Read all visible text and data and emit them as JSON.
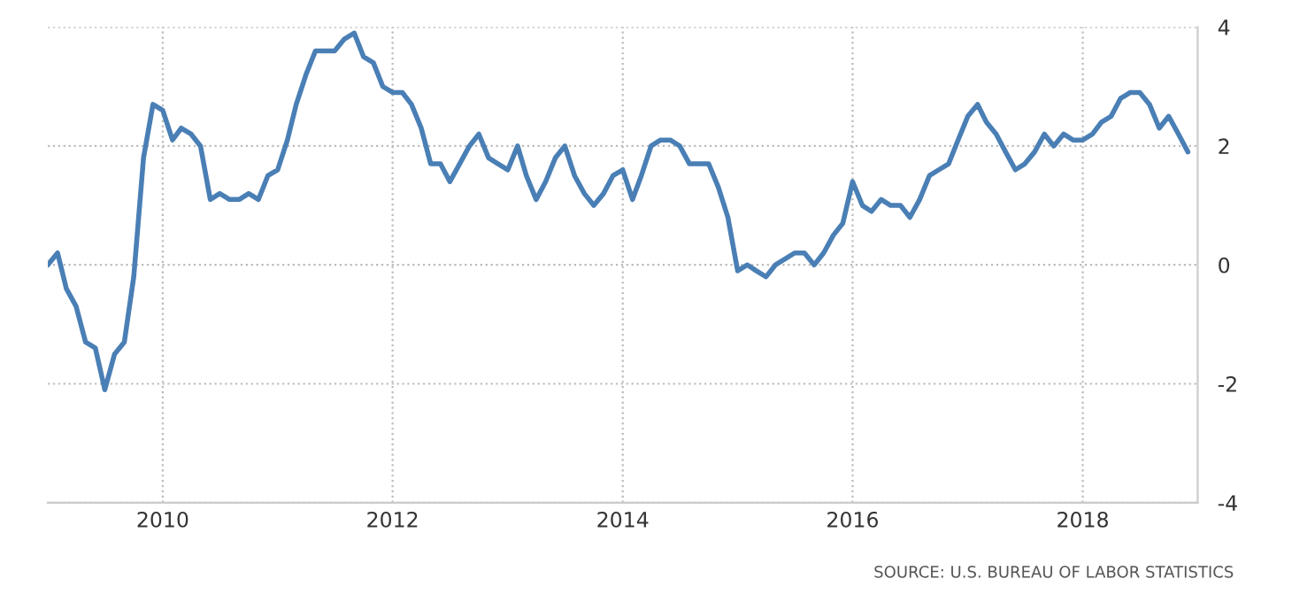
{
  "chart_data": {
    "type": "line",
    "x": [
      "2009-01",
      "2009-02",
      "2009-03",
      "2009-04",
      "2009-05",
      "2009-06",
      "2009-07",
      "2009-08",
      "2009-09",
      "2009-10",
      "2009-11",
      "2009-12",
      "2010-01",
      "2010-02",
      "2010-03",
      "2010-04",
      "2010-05",
      "2010-06",
      "2010-07",
      "2010-08",
      "2010-09",
      "2010-10",
      "2010-11",
      "2010-12",
      "2011-01",
      "2011-02",
      "2011-03",
      "2011-04",
      "2011-05",
      "2011-06",
      "2011-07",
      "2011-08",
      "2011-09",
      "2011-10",
      "2011-11",
      "2011-12",
      "2012-01",
      "2012-02",
      "2012-03",
      "2012-04",
      "2012-05",
      "2012-06",
      "2012-07",
      "2012-08",
      "2012-09",
      "2012-10",
      "2012-11",
      "2012-12",
      "2013-01",
      "2013-02",
      "2013-03",
      "2013-04",
      "2013-05",
      "2013-06",
      "2013-07",
      "2013-08",
      "2013-09",
      "2013-10",
      "2013-11",
      "2013-12",
      "2014-01",
      "2014-02",
      "2014-03",
      "2014-04",
      "2014-05",
      "2014-06",
      "2014-07",
      "2014-08",
      "2014-09",
      "2014-10",
      "2014-11",
      "2014-12",
      "2015-01",
      "2015-02",
      "2015-03",
      "2015-04",
      "2015-05",
      "2015-06",
      "2015-07",
      "2015-08",
      "2015-09",
      "2015-10",
      "2015-11",
      "2015-12",
      "2016-01",
      "2016-02",
      "2016-03",
      "2016-04",
      "2016-05",
      "2016-06",
      "2016-07",
      "2016-08",
      "2016-09",
      "2016-10",
      "2016-11",
      "2016-12",
      "2017-01",
      "2017-02",
      "2017-03",
      "2017-04",
      "2017-05",
      "2017-06",
      "2017-07",
      "2017-08",
      "2017-09",
      "2017-10",
      "2017-11",
      "2017-12",
      "2018-01",
      "2018-02",
      "2018-03",
      "2018-04",
      "2018-05",
      "2018-06",
      "2018-07",
      "2018-08",
      "2018-09",
      "2018-10",
      "2018-11",
      "2018-12"
    ],
    "series": [
      {
        "color": "#4a7fb5",
        "values": [
          0.0,
          0.2,
          -0.4,
          -0.7,
          -1.3,
          -1.4,
          -2.1,
          -1.5,
          -1.3,
          -0.2,
          1.8,
          2.7,
          2.6,
          2.1,
          2.3,
          2.2,
          2.0,
          1.1,
          1.2,
          1.1,
          1.1,
          1.2,
          1.1,
          1.5,
          1.6,
          2.1,
          2.7,
          3.2,
          3.6,
          3.6,
          3.6,
          3.8,
          3.9,
          3.5,
          3.4,
          3.0,
          2.9,
          2.9,
          2.7,
          2.3,
          1.7,
          1.7,
          1.4,
          1.7,
          2.0,
          2.2,
          1.8,
          1.7,
          1.6,
          2.0,
          1.5,
          1.1,
          1.4,
          1.8,
          2.0,
          1.5,
          1.2,
          1.0,
          1.2,
          1.5,
          1.6,
          1.1,
          1.5,
          2.0,
          2.1,
          2.1,
          2.0,
          1.7,
          1.7,
          1.7,
          1.3,
          0.8,
          -0.1,
          0.0,
          -0.1,
          -0.2,
          0.0,
          0.1,
          0.2,
          0.2,
          0.0,
          0.2,
          0.5,
          0.7,
          1.4,
          1.0,
          0.9,
          1.1,
          1.0,
          1.0,
          0.8,
          1.1,
          1.5,
          1.6,
          1.7,
          2.1,
          2.5,
          2.7,
          2.4,
          2.2,
          1.9,
          1.6,
          1.7,
          1.9,
          2.2,
          2.0,
          2.2,
          2.1,
          2.1,
          2.2,
          2.4,
          2.5,
          2.8,
          2.9,
          2.9,
          2.7,
          2.3,
          2.5,
          2.2,
          1.9
        ]
      }
    ],
    "xlim": [
      "2009-01",
      "2019-01"
    ],
    "xticks": [
      "2010",
      "2012",
      "2014",
      "2016",
      "2018"
    ],
    "ylim": [
      -4,
      4
    ],
    "yticks": [
      -4,
      -2,
      0,
      2,
      4
    ],
    "grid": true,
    "line_style": "solid",
    "annotations": [
      "SOURCE: U.S. BUREAU OF LABOR STATISTICS"
    ]
  }
}
